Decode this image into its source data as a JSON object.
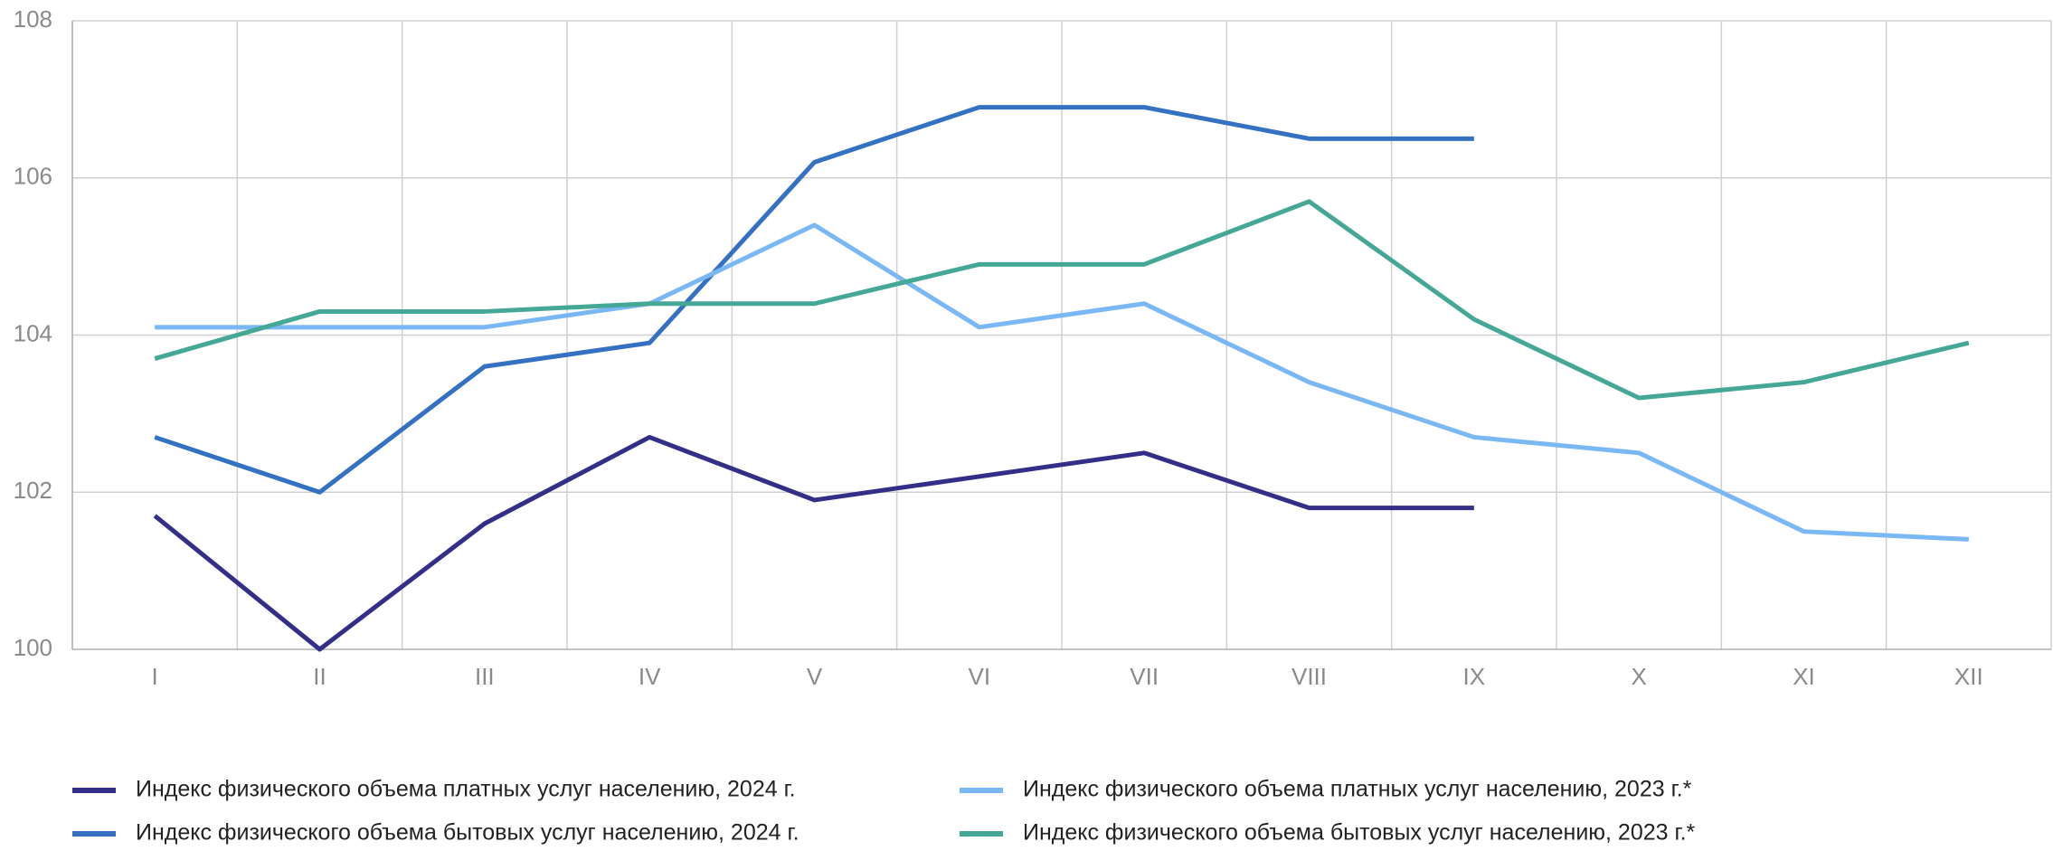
{
  "chart_data": {
    "type": "line",
    "categories": [
      "I",
      "II",
      "III",
      "IV",
      "V",
      "VI",
      "VII",
      "VIII",
      "IX",
      "X",
      "XI",
      "XII"
    ],
    "series": [
      {
        "name": "Индекс физического объема платных услуг населению, 2024 г.",
        "color": "#332f88",
        "values": [
          101.7,
          100.0,
          101.6,
          102.7,
          101.9,
          102.2,
          102.5,
          101.8,
          101.8,
          null,
          null,
          null
        ]
      },
      {
        "name": "Индекс физического объема бытовых услуг населению, 2024 г.",
        "color": "#3471c3",
        "values": [
          102.7,
          102.0,
          103.6,
          103.9,
          106.2,
          106.9,
          106.9,
          106.5,
          106.5,
          null,
          null,
          null
        ]
      },
      {
        "name": "Индекс физического объема платных услуг населению, 2023 г.*",
        "color": "#7ab8f5",
        "values": [
          104.1,
          104.1,
          104.1,
          104.4,
          105.4,
          104.1,
          104.4,
          103.4,
          102.7,
          102.5,
          101.5,
          101.4
        ]
      },
      {
        "name": "Индекс физического объема бытовых услуг населению, 2023 г.*",
        "color": "#45a896",
        "values": [
          103.7,
          104.3,
          104.3,
          104.4,
          104.4,
          104.9,
          104.9,
          105.7,
          104.2,
          103.2,
          103.4,
          103.9
        ]
      }
    ],
    "ylim": [
      100,
      108
    ],
    "yticks": [
      100,
      102,
      104,
      106,
      108
    ],
    "grid": true
  }
}
